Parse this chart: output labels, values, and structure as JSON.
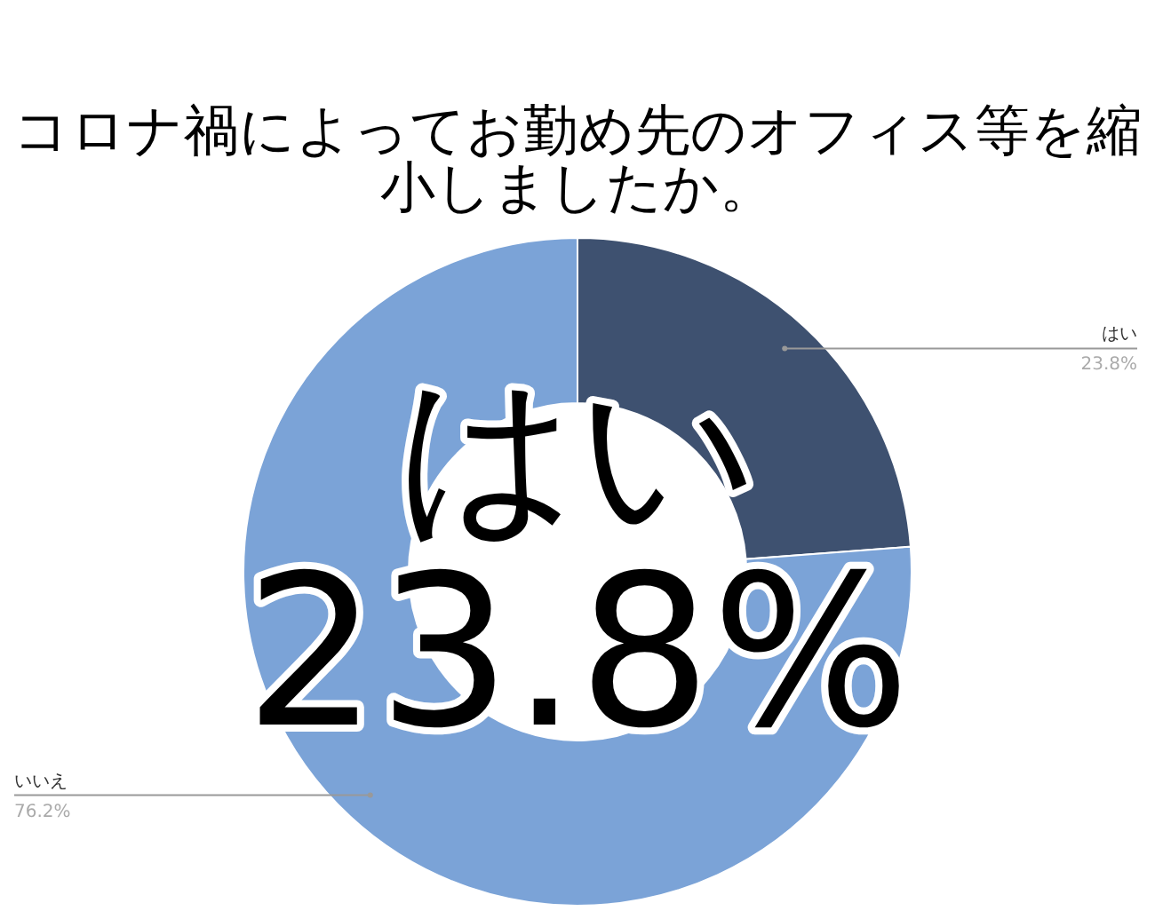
{
  "chart_data": {
    "type": "donut",
    "title": "コロナ禍によってお勤め先のオフィス等を縮小しましたか。",
    "categories": [
      "はい",
      "いいえ"
    ],
    "values": [
      23.8,
      76.2
    ],
    "value_labels": [
      "23.8%",
      "76.2%"
    ],
    "colors": [
      "#3e5170",
      "#7ba3d7"
    ],
    "annotations": [
      "はい",
      "23.8%"
    ]
  }
}
